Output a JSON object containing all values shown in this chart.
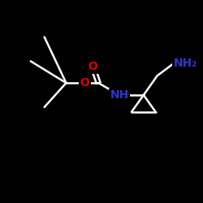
{
  "background_color": "#000000",
  "bond_color": "#ffffff",
  "atom_colors": {
    "O": "#dd0000",
    "N": "#3333cc",
    "C": "#ffffff"
  },
  "figsize": [
    2.5,
    2.5
  ],
  "dpi": 100,
  "bond_lw": 1.8,
  "font_size": 10
}
